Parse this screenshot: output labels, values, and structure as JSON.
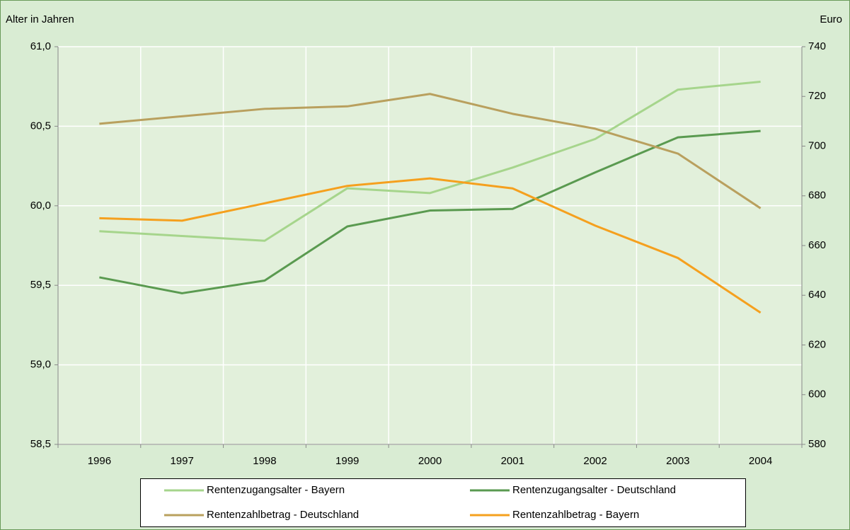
{
  "chart_data": {
    "type": "line",
    "y_label": "Alter in Jahren",
    "y2_label": "Euro",
    "categories": [
      "1996",
      "1997",
      "1998",
      "1999",
      "2000",
      "2001",
      "2002",
      "2003",
      "2004"
    ],
    "series": [
      {
        "name": "Rentenzugangsalter - Bayern",
        "color": "#a6d58c",
        "values": [
          59.84,
          59.81,
          59.78,
          60.11,
          60.08,
          60.24,
          60.42,
          60.73,
          60.78
        ]
      },
      {
        "name": "Rentenzugangsalter - Deutschland",
        "color": "#5a9a50",
        "values": [
          59.55,
          59.45,
          59.53,
          59.87,
          59.97,
          59.98,
          60.21,
          60.43,
          60.47
        ]
      },
      {
        "name": "Rentenzahlbetrag - Deutschland",
        "color": "#b9a05e",
        "axis": "y2",
        "values": [
          709,
          712,
          715,
          716,
          721,
          713,
          707,
          697,
          675
        ]
      },
      {
        "name": "Rentenzahlbetrag - Bayern",
        "color": "#f5a01e",
        "axis": "y2",
        "values": [
          671,
          670,
          677,
          684,
          687,
          683,
          668,
          655,
          633
        ]
      }
    ],
    "ylim": [
      58.5,
      61.0
    ],
    "yticks": [
      {
        "value": 58.5,
        "label": "58,5"
      },
      {
        "value": 59.0,
        "label": "59,0"
      },
      {
        "value": 59.5,
        "label": "59,5"
      },
      {
        "value": 60.0,
        "label": "60,0"
      },
      {
        "value": 60.5,
        "label": "60,5"
      },
      {
        "value": 61.0,
        "label": "61,0"
      }
    ],
    "y2lim": [
      580,
      740
    ],
    "y2ticks": [
      580,
      600,
      620,
      640,
      660,
      680,
      700,
      720,
      740
    ],
    "grid": true,
    "legend": "bottom"
  }
}
